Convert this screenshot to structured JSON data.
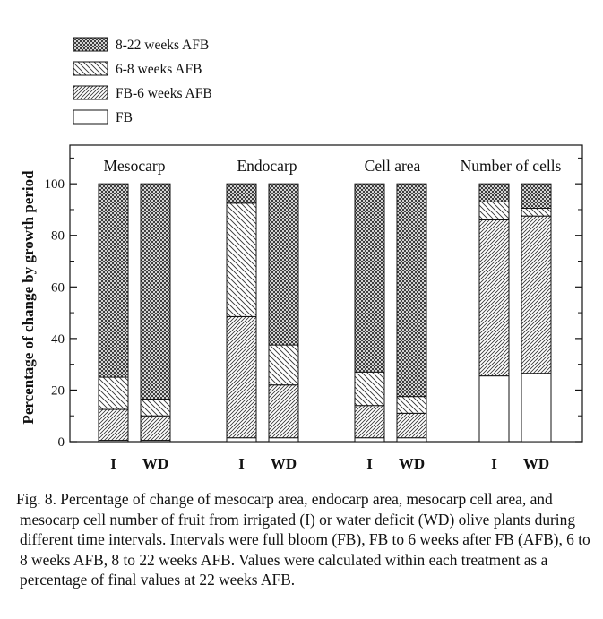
{
  "chart_data": {
    "type": "bar",
    "stacked": true,
    "ylabel": "Percentage of change by growth period",
    "ylim": [
      0,
      115
    ],
    "yticks": [
      0,
      20,
      40,
      60,
      80,
      100
    ],
    "legend": {
      "placement": "top-left",
      "entries": [
        {
          "label": "8-22 weeks AFB",
          "pattern": "crosshatch"
        },
        {
          "label": "6-8 weeks AFB",
          "pattern": "wide-diagonal"
        },
        {
          "label": "FB-6 weeks AFB",
          "pattern": "fine-diagonal"
        },
        {
          "label": "FB",
          "pattern": "blank"
        }
      ]
    },
    "stack_order_bottom_to_top": [
      "FB",
      "FB-6 weeks AFB",
      "6-8 weeks AFB",
      "8-22 weeks AFB"
    ],
    "panels": [
      {
        "label": "Mesocarp",
        "bars": [
          {
            "category": "I",
            "values": {
              "FB": 0.5,
              "FB-6 weeks AFB": 12,
              "6-8 weeks AFB": 12.5,
              "8-22 weeks AFB": 75
            }
          },
          {
            "category": "WD",
            "values": {
              "FB": 0.5,
              "FB-6 weeks AFB": 9.5,
              "6-8 weeks AFB": 6.5,
              "8-22 weeks AFB": 83.5
            }
          }
        ]
      },
      {
        "label": "Endocarp",
        "bars": [
          {
            "category": "I",
            "values": {
              "FB": 1.5,
              "FB-6 weeks AFB": 47,
              "6-8 weeks AFB": 44,
              "8-22 weeks AFB": 7.5
            }
          },
          {
            "category": "WD",
            "values": {
              "FB": 1.5,
              "FB-6 weeks AFB": 20.5,
              "6-8 weeks AFB": 15.5,
              "8-22 weeks AFB": 62.5
            }
          }
        ]
      },
      {
        "label": "Cell area",
        "bars": [
          {
            "category": "I",
            "values": {
              "FB": 1.5,
              "FB-6 weeks AFB": 12.5,
              "6-8 weeks AFB": 13,
              "8-22 weeks AFB": 73
            }
          },
          {
            "category": "WD",
            "values": {
              "FB": 1.5,
              "FB-6 weeks AFB": 9.5,
              "6-8 weeks AFB": 6.5,
              "8-22 weeks AFB": 82.5
            }
          }
        ]
      },
      {
        "label": "Number of cells",
        "bars": [
          {
            "category": "I",
            "values": {
              "FB": 25.5,
              "FB-6 weeks AFB": 60.5,
              "6-8 weeks AFB": 7,
              "8-22 weeks AFB": 7
            }
          },
          {
            "category": "WD",
            "values": {
              "FB": 26.5,
              "FB-6 weeks AFB": 61,
              "6-8 weeks AFB": 3,
              "8-22 weeks AFB": 9.5
            }
          }
        ]
      }
    ]
  },
  "caption": "Fig. 8. Percentage of change of mesocarp area, endocarp area, mesocarp cell area, and mesocarp cell number of fruit from irrigated (I) or water deficit (WD) olive plants during different time intervals. Intervals were full bloom (FB), FB to 6 weeks after FB  (AFB), 6 to 8 weeks AFB, 8 to 22 weeks AFB. Values were calculated within each treatment as a percentage of final values at 22 weeks AFB."
}
